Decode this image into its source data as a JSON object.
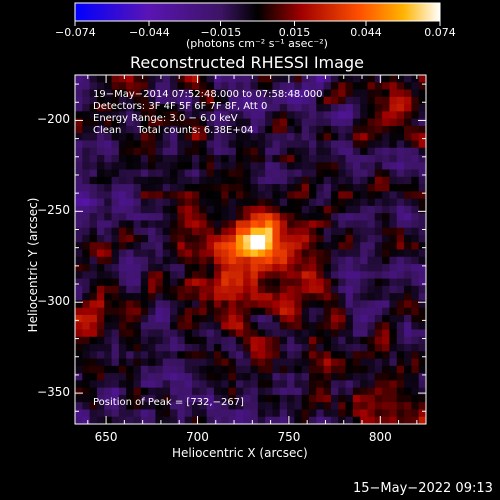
{
  "chart_data": {
    "type": "heatmap",
    "title": "Reconstructed RHESSI Image",
    "xlabel": "Heliocentric X (arcsec)",
    "ylabel": "Heliocentric Y (arcsec)",
    "xlim": [
      633,
      825
    ],
    "ylim": [
      -367,
      -175
    ],
    "x_ticks": [
      650,
      700,
      750,
      800
    ],
    "y_ticks": [
      -200,
      -250,
      -300,
      -350
    ],
    "x_tick_labels": [
      "650",
      "700",
      "750",
      "800"
    ],
    "y_tick_labels": [
      "−200",
      "−250",
      "−300",
      "−350"
    ],
    "colorbar": {
      "min": -0.074,
      "max": 0.074,
      "ticks": [
        -0.074,
        -0.044,
        -0.015,
        0.015,
        0.044,
        0.074
      ],
      "tick_labels": [
        "−0.074",
        "−0.044",
        "−0.015",
        "0.015",
        "0.044",
        "0.074"
      ],
      "label": "(photons cm⁻² s⁻¹ asec⁻²)",
      "colors": [
        "#0000ff",
        "#5a14b4",
        "#3c1464",
        "#000000",
        "#a00000",
        "#ff5000",
        "#ffb400",
        "#ffffff"
      ]
    },
    "peak": {
      "x": 732,
      "y": -267
    },
    "info_lines": [
      "19−May−2014 07:52:48.000 to 07:58:48.000",
      "Detectors: 3F 4F 5F 6F 7F 8F, Att 0",
      "Energy Range: 3.0 − 6.0 keV",
      "Clean     Total counts: 6.38E+04"
    ],
    "peak_text": "Position of Peak = [732,−267]"
  },
  "footer": {
    "timestamp": "15−May−2022 09:13"
  }
}
